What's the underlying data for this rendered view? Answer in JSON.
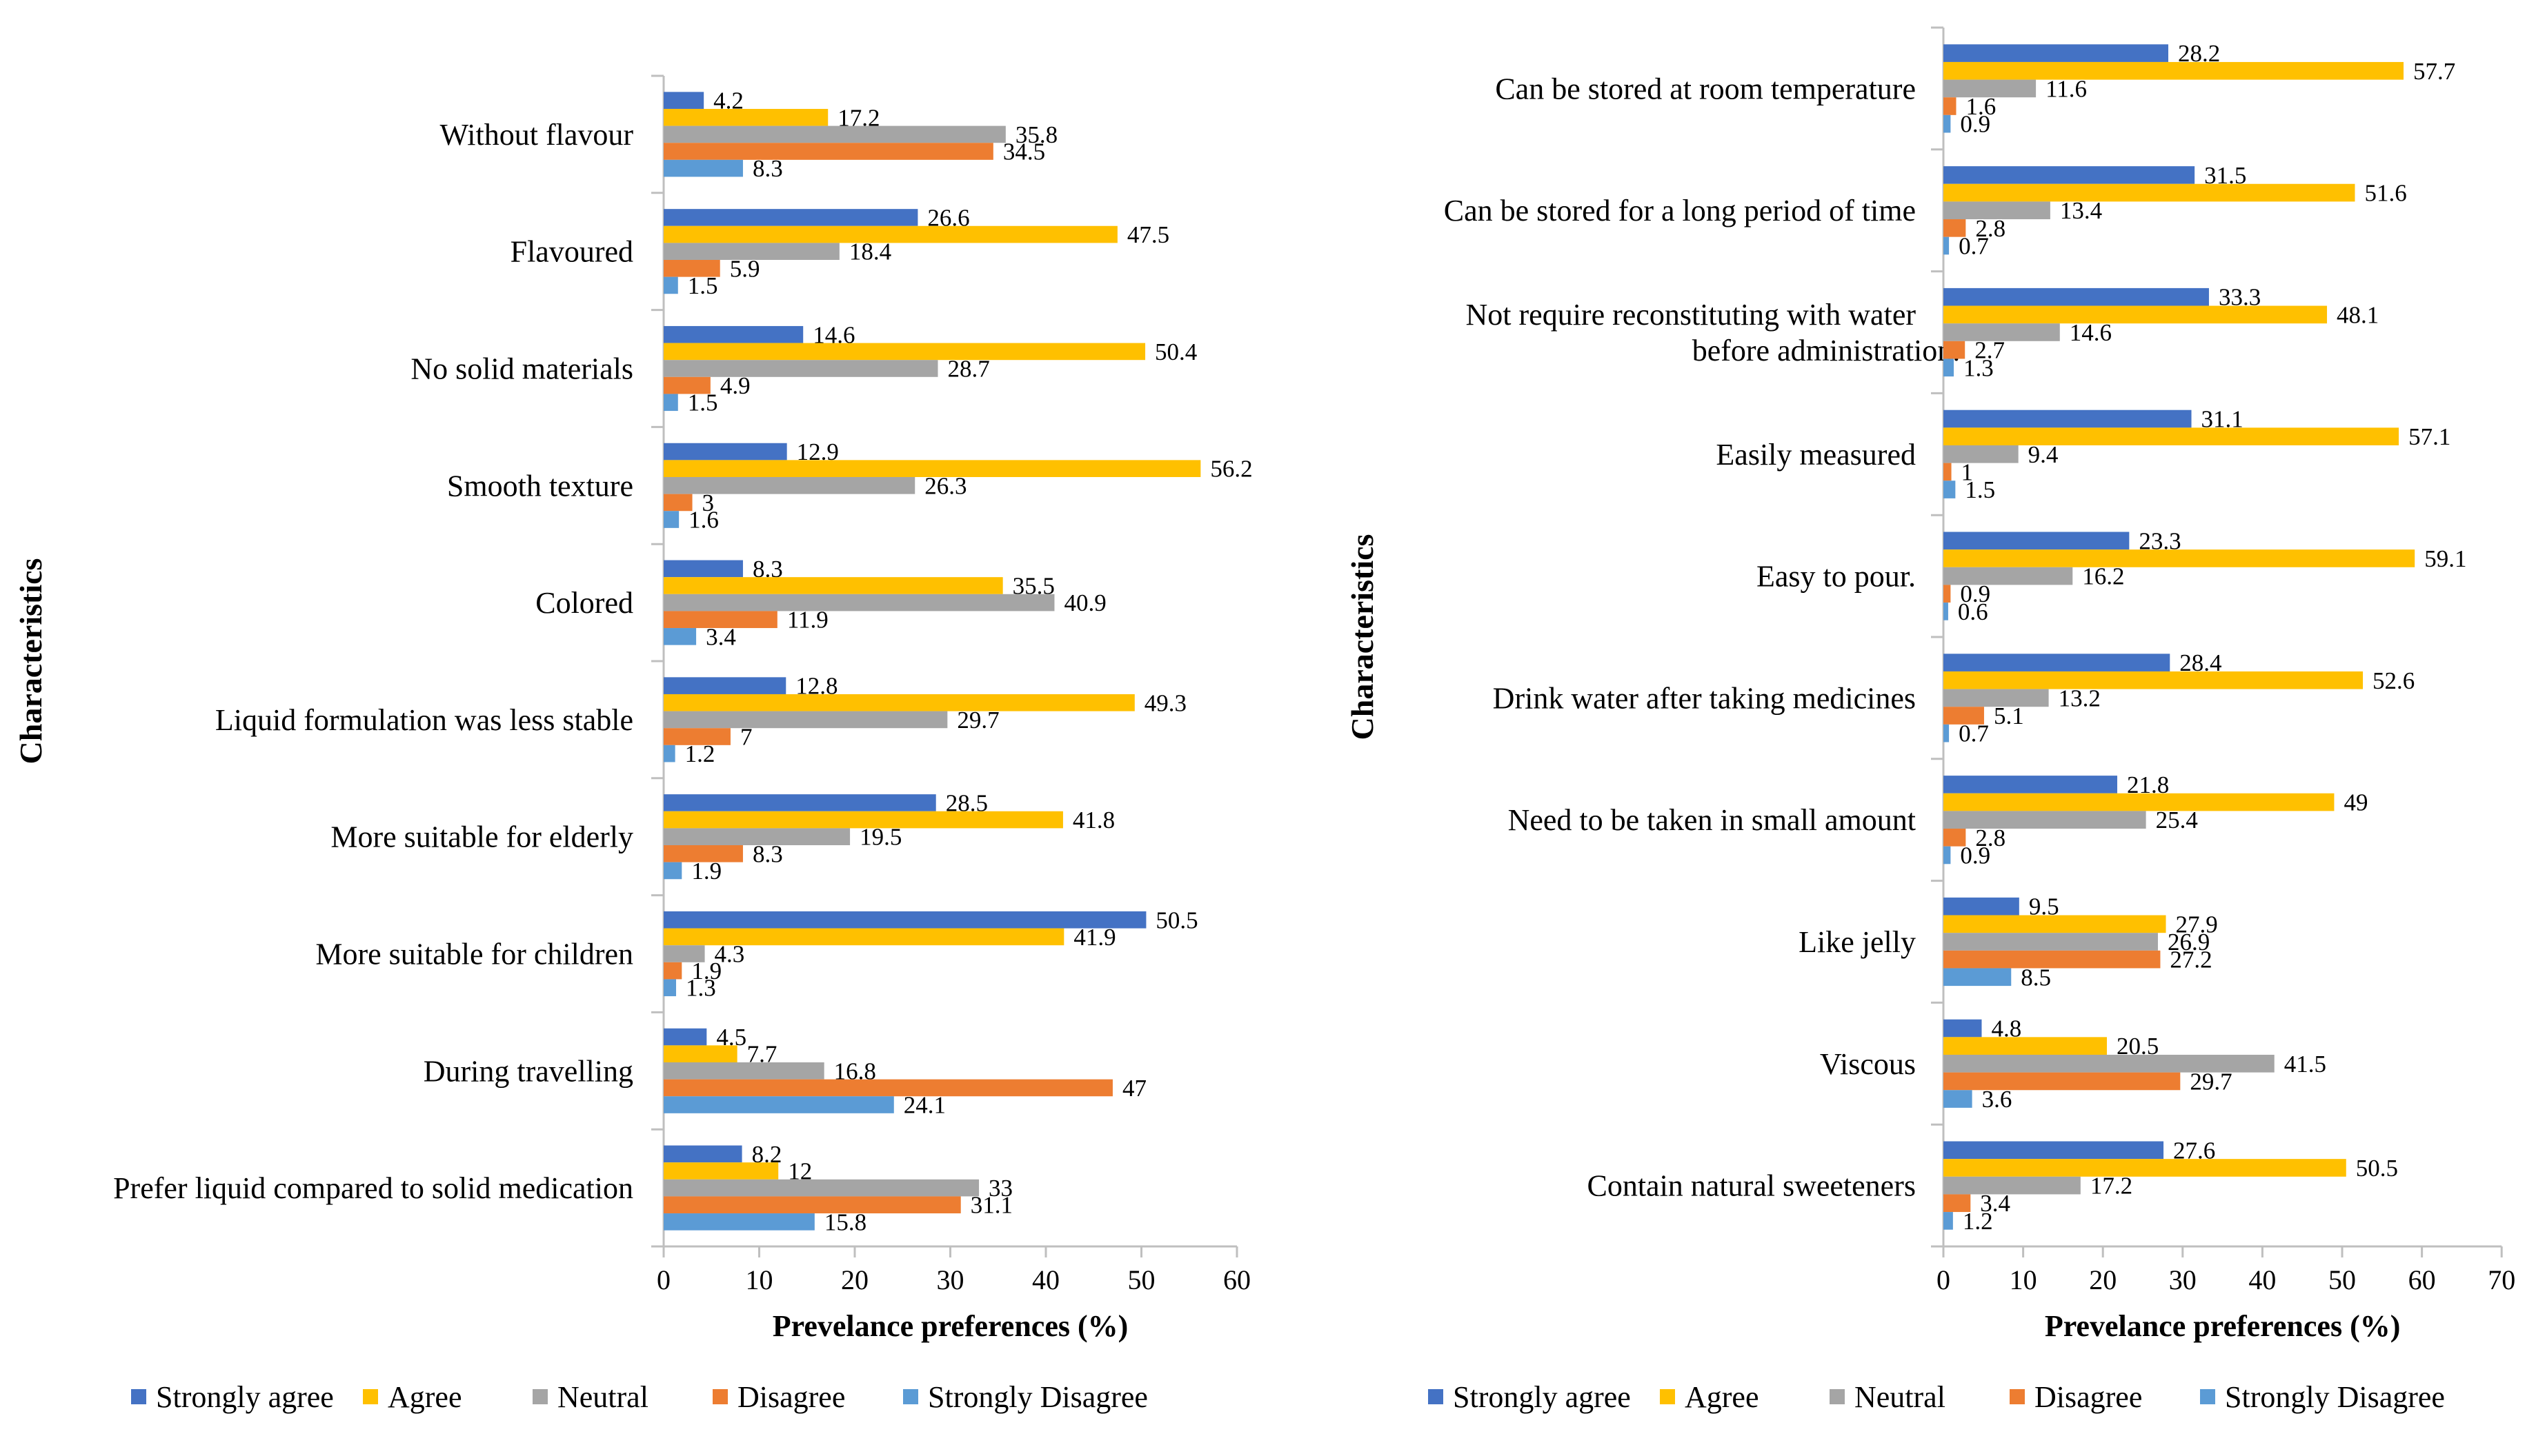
{
  "legend": [
    "Strongly agree",
    "Agree",
    "Neutral",
    "Disagree",
    "Strongly Disagree"
  ],
  "colors": {
    "Strongly agree": "#4472C4",
    "Agree": "#FFC000",
    "Neutral": "#A5A5A5",
    "Disagree": "#ED7D31",
    "Strongly Disagree": "#5B9BD5"
  },
  "chart_data": [
    {
      "type": "bar",
      "orientation": "horizontal",
      "xlabel": "Prevelance preferences (%)",
      "ylabel": "Characteristics",
      "xlim": [
        0,
        60
      ],
      "xticks": [
        "0",
        "10",
        "20",
        "30",
        "40",
        "50",
        "60"
      ],
      "legend_position": "bottom",
      "categories": [
        "Without flavour",
        "Flavoured",
        "No solid materials",
        "Smooth texture",
        "Colored",
        "Liquid formulation was less stable",
        "More suitable for elderly",
        "More suitable  for children",
        "During travelling",
        "Prefer liquid compared to solid medication"
      ],
      "series": [
        {
          "name": "Strongly agree",
          "values": [
            4.2,
            26.6,
            14.6,
            12.9,
            8.3,
            12.8,
            28.5,
            50.5,
            4.5,
            8.2
          ],
          "labels": [
            "4.2",
            "26.6",
            "14.6",
            "12.9",
            "8.3",
            "12.8",
            "28.5",
            "50.5",
            "4.5",
            "8.2"
          ]
        },
        {
          "name": "Agree",
          "values": [
            17.2,
            47.5,
            50.4,
            56.2,
            35.5,
            49.3,
            41.8,
            41.9,
            7.7,
            12
          ],
          "labels": [
            "17.2",
            "47.5",
            "50.4",
            "56.2",
            "35.5",
            "49.3",
            "41.8",
            "41.9",
            "7.7",
            "12"
          ]
        },
        {
          "name": "Neutral",
          "values": [
            35.8,
            18.4,
            28.7,
            26.3,
            40.9,
            29.7,
            19.5,
            4.3,
            16.8,
            33
          ],
          "labels": [
            "35.8",
            "18.4",
            "28.7",
            "26.3",
            "40.9",
            "29.7",
            "19.5",
            "4.3",
            "16.8",
            "33"
          ]
        },
        {
          "name": "Disagree",
          "values": [
            34.5,
            5.9,
            4.9,
            3,
            11.9,
            7,
            8.3,
            1.9,
            47,
            31.1
          ],
          "labels": [
            "34.5",
            "5.9",
            "4.9",
            "3",
            "11.9",
            "7",
            "8.3",
            "1.9",
            "47",
            "31.1"
          ]
        },
        {
          "name": "Strongly Disagree",
          "values": [
            8.3,
            1.5,
            1.5,
            1.6,
            3.4,
            1.2,
            1.9,
            1.3,
            24.1,
            15.8
          ],
          "labels": [
            "8.3",
            "1.5",
            "1.5",
            "1.6",
            "3.4",
            "1.2",
            "1.9",
            "1.3",
            "24.1",
            "15.8"
          ]
        }
      ]
    },
    {
      "type": "bar",
      "orientation": "horizontal",
      "xlabel": "Prevelance preferences (%)",
      "ylabel": "Characteristics",
      "xlim": [
        0,
        70
      ],
      "xticks": [
        "0",
        "10",
        "20",
        "30",
        "40",
        "50",
        "60",
        "70"
      ],
      "legend_position": "bottom",
      "categories": [
        "Can be stored at room temperature",
        "Can be stored for a long period of time",
        "Not require reconstituting with water|before administration.",
        "Easily measured",
        "Easy to pour.",
        "Drink water after taking medicines",
        "Need to be taken in small amount",
        "Like jelly",
        "Viscous",
        "Contain natural sweeteners"
      ],
      "series": [
        {
          "name": "Strongly agree",
          "values": [
            28.2,
            31.5,
            33.3,
            31.1,
            23.3,
            28.4,
            21.8,
            9.5,
            4.8,
            27.6
          ],
          "labels": [
            "28.2",
            "31.5",
            "33.3",
            "31.1",
            "23.3",
            "28.4",
            "21.8",
            "9.5",
            "4.8",
            "27.6"
          ]
        },
        {
          "name": "Agree",
          "values": [
            57.7,
            51.6,
            48.1,
            57.1,
            59.1,
            52.6,
            49,
            27.9,
            20.5,
            50.5
          ],
          "labels": [
            "57.7",
            "51.6",
            "48.1",
            "57.1",
            "59.1",
            "52.6",
            "49",
            "27.9",
            "20.5",
            "50.5"
          ]
        },
        {
          "name": "Neutral",
          "values": [
            11.6,
            13.4,
            14.6,
            9.4,
            16.2,
            13.2,
            25.4,
            26.9,
            41.5,
            17.2
          ],
          "labels": [
            "11.6",
            "13.4",
            "14.6",
            "9.4",
            "16.2",
            "13.2",
            "25.4",
            "26.9",
            "41.5",
            "17.2"
          ]
        },
        {
          "name": "Disagree",
          "values": [
            1.6,
            2.8,
            2.7,
            1,
            0.9,
            5.1,
            2.8,
            27.2,
            29.7,
            3.4
          ],
          "labels": [
            "1.6",
            "2.8",
            "2.7",
            "1",
            "0.9",
            "5.1",
            "2.8",
            "27.2",
            "29.7",
            "3.4"
          ]
        },
        {
          "name": "Strongly Disagree",
          "values": [
            0.9,
            0.7,
            1.3,
            1.5,
            0.6,
            0.7,
            0.9,
            8.5,
            3.6,
            1.2
          ],
          "labels": [
            "0.9",
            "0.7",
            "1.3",
            "1.5",
            "0.6",
            "0.7",
            "0.9",
            "8.5",
            "3.6",
            "1.2"
          ]
        }
      ]
    }
  ]
}
